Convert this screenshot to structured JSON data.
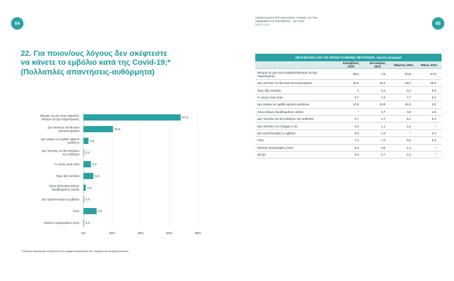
{
  "page_numbers": {
    "left": "64",
    "right": "65"
  },
  "header": {
    "line1": "ΠΑΝΕΛΛΑΔΙΚΗ ΕΡΕΥΝΑ ΚΟΙΝΗΣ ΓΝΩΜΗΣ ΓΙΑ ΤΗΝ",
    "line2": "ΠΑΝΔΗΜΙΑ ΤΟΥ ΚΟΡΩΝΟΪΟΥ - 5ο ΚΥΜΑ",
    "date": "ΜΑΙΟΣ 2021"
  },
  "question": {
    "line1": "22. Για ποιον/ους λόγους δεν σκέφτεστε",
    "line2": "να κάνετε το εμβόλιο κατά της Covid-19;*",
    "line3": "(Πολλαπλές απαντήσεις-αυθόρμητα)"
  },
  "footnote": "* Όσοι/ες απάντησαν ότι μάλλον δεν σκέφτονται/μάλλον δεν σκέφτονται να εμβολιαστούν",
  "colors": {
    "accent": "#2aa2a3",
    "bar": "#2aa2a3",
    "table_head_bg": "#d9ebeb"
  },
  "chart_data": {
    "type": "bar",
    "orientation": "horizontal",
    "title": "22. Για ποιον/ους λόγους δεν σκέφτεστε να κάνετε το εμβόλιο κατά της Covid-19;*",
    "categories": [
      [
        "Μπορεί να μην είναι ασφαλές/",
        "Μπορεί να έχει παρενέργειες"
      ],
      [
        "Δεν πιστεύω ότι θα είναι",
        "αποτελεσματικό"
      ],
      [
        "Δεν ανήκω σε ομάδα υψηλού",
        "κινδύνου"
      ],
      [
        "Δεν πιστεύω ότι θα κολλήσω",
        "την ασθένεια"
      ],
      [
        "Η νόσος είναι ήπια"
      ],
      [
        "Έχω ήδη νοσήσει"
      ],
      [
        "Λόγοι άλλων/και άλλων",
        "προβλημάτων υγείας"
      ],
      [
        "Δεν εμπιστεύομαι το εμβόλιο"
      ],
      [
        "Άλλο"
      ],
      [
        "Κανένα συγκεκριμένο λόγο"
      ]
    ],
    "values": [
      67.9,
      20.6,
      3.5,
      0.4,
      5.2,
      6.9,
      1.6,
      0.4,
      9.2,
      0.4
    ],
    "value_labels": [
      "67,9",
      "20,6",
      "3,5",
      "0,4",
      "5,2",
      "6,9",
      "1,6",
      "0,4",
      "9,2",
      "0,4"
    ],
    "x_ticks": [
      "0%",
      "20%",
      "40%",
      "60%",
      "80%"
    ],
    "xlim": [
      0,
      80
    ],
    "grid": true
  },
  "table": {
    "title": "ΜΕΤΑΒΟΛΕΣ ΑΠΟ ΤΙΣ ΠΡΟΗΓΟΥΜΕΝΕΣ ΜΕΤΡΗΣΕΙΣ: Πρώτη αναφορά",
    "columns": [
      "Δεκέμβριος 2020",
      "Ιανουάριος 2021",
      "Μάρτιος 2021",
      "Μάιος 2021"
    ],
    "rows": [
      {
        "label": "Μπορεί να μην είναι ασφαλές/Μπορεί να έχει παρενέργειες",
        "values": [
          "68,6",
          "7,5",
          "54,5",
          "67,9"
        ]
      },
      {
        "label": "Δεν πιστεύω ότι θα είναι αποτελεσματικό",
        "values": [
          "20,5",
          "16,4",
          "26,2",
          "20,6"
        ]
      },
      {
        "label": "Έχω ήδη νοσήσει",
        "values": [
          "2",
          "0,2",
          "0,2",
          "6,9"
        ]
      },
      {
        "label": "Η νόσος είναι ήπια",
        "values": [
          "3,7",
          "7,4",
          "7,7",
          "5,2"
        ]
      },
      {
        "label": "Δεν ανήκω σε ομάδα υψηλού κινδύνου",
        "values": [
          "12,5",
          "10,8",
          "16,3",
          "3,5"
        ]
      },
      {
        "label": "Λόγοι άλλων προβλημάτων υγείας",
        "values": [
          "*",
          "3,7",
          "3,6",
          "1,6"
        ]
      },
      {
        "label": "Δεν πιστεύω ότι θα κολλήσω την ασθένεια",
        "values": [
          "4,7",
          "2,7",
          "5,4",
          "0,4"
        ]
      },
      {
        "label": "Δεν πιστεύω ότι υπάρχει ο ιός",
        "values": [
          "2,6",
          "1,1",
          "2,4",
          "*"
        ]
      },
      {
        "label": "Δεν εμπιστεύομαι το εμβόλιο",
        "values": [
          "2,9",
          "1,2",
          "*",
          "0,4"
        ]
      },
      {
        "label": "Άλλο",
        "values": [
          "7,2",
          "7,3",
          "9,5",
          "9,2"
        ]
      },
      {
        "label": "Κανένα συγκεκριμένο λόγο",
        "values": [
          "2,5",
          "0,8",
          "1,1",
          "*"
        ]
      },
      {
        "label": "ΔΓ/ΔΑ",
        "values": [
          "0,6",
          "0,7",
          "0,4",
          "*"
        ]
      }
    ]
  }
}
